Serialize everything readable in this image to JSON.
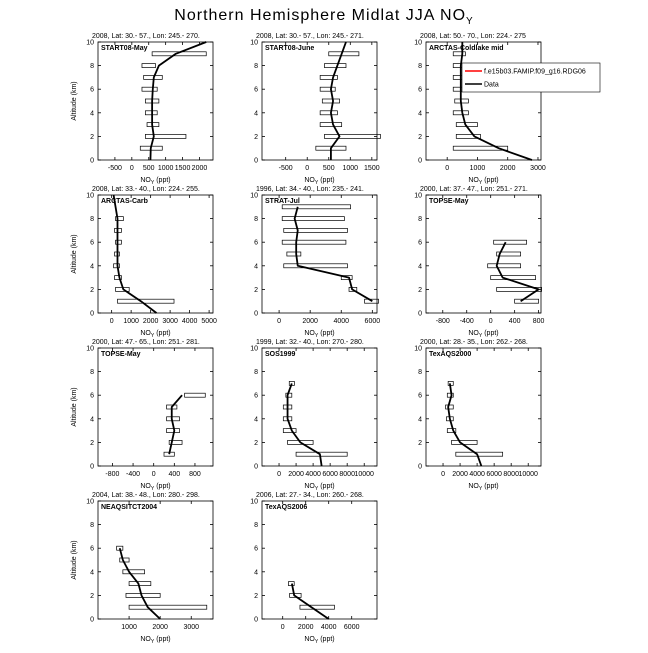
{
  "figure": {
    "title": "Northern Hemisphere Midlat JJA NO",
    "title_subscript": "Y"
  },
  "chart_data": [
    {
      "type": "line",
      "header": "2008, Lat:  30.- 57., Lon: 245.- 270.",
      "label": "START08-May",
      "x_label": "NO",
      "x_label_subscript": "Y",
      "x_label_unit": "(ppt)",
      "y_label": "Altitude (km)",
      "xlim": [
        -1000,
        2400
      ],
      "xticks": [
        -500,
        0,
        500,
        1000,
        1500,
        2000
      ],
      "ylim": [
        0,
        10
      ],
      "yticks": [
        0,
        2,
        4,
        6,
        8,
        10
      ],
      "model": {
        "color": "#000000",
        "altitude": [
          0,
          1,
          2,
          3,
          4,
          5,
          6,
          7,
          8,
          9,
          10
        ],
        "values": [
          550,
          560,
          650,
          600,
          600,
          600,
          620,
          650,
          800,
          1300,
          2200
        ]
      },
      "data": {
        "altitude": [
          1,
          2,
          3,
          4,
          5,
          6,
          7,
          8,
          9
        ],
        "low": [
          250,
          400,
          450,
          400,
          400,
          300,
          350,
          300,
          600
        ],
        "high": [
          900,
          1600,
          800,
          750,
          800,
          750,
          900,
          700,
          2200
        ]
      }
    },
    {
      "type": "line",
      "header": "2008, Lat:  30.- 57., Lon: 245.- 271.",
      "label": "START08-June",
      "x_label": "NO",
      "x_label_subscript": "Y",
      "x_label_unit": "(ppt)",
      "xlim": [
        -1050,
        1620
      ],
      "xticks": [
        -500,
        0,
        500,
        1000,
        1500
      ],
      "ylim": [
        0,
        10
      ],
      "yticks": [
        0,
        2,
        4,
        6,
        8,
        10
      ],
      "model": {
        "color": "#000000",
        "altitude": [
          0,
          1,
          2,
          3,
          4,
          5,
          6,
          7,
          8,
          9,
          10
        ],
        "values": [
          550,
          550,
          750,
          600,
          550,
          600,
          550,
          600,
          700,
          800,
          900
        ]
      },
      "data": {
        "altitude": [
          1,
          2,
          3,
          4,
          5,
          6,
          7,
          8,
          9
        ],
        "low": [
          200,
          400,
          300,
          300,
          350,
          300,
          300,
          400,
          500
        ],
        "high": [
          900,
          1700,
          800,
          700,
          750,
          650,
          700,
          900,
          1200
        ]
      }
    },
    {
      "type": "line",
      "header": "2008, Lat:  50.- 70., Lon: 224.- 275",
      "label": "ARCTAS-Coldlake mid",
      "x_label": "NO",
      "x_label_subscript": "Y",
      "x_label_unit": "(ppt)",
      "xlim": [
        -700,
        3100
      ],
      "xticks": [
        0,
        1000,
        2000,
        3000
      ],
      "ylim": [
        0,
        10
      ],
      "yticks": [
        0,
        2,
        4,
        6,
        8,
        10
      ],
      "model": {
        "color": "#000000",
        "altitude": [
          0,
          1,
          2,
          3,
          4,
          5,
          6,
          7,
          8,
          9,
          10
        ],
        "values": [
          2800,
          1700,
          900,
          600,
          500,
          450,
          450,
          450,
          450,
          500,
          500
        ]
      },
      "data": {
        "altitude": [
          1,
          2,
          3,
          4,
          5,
          6,
          7,
          8,
          9
        ],
        "low": [
          200,
          300,
          300,
          200,
          250,
          200,
          200,
          200,
          200
        ],
        "high": [
          2000,
          1100,
          1000,
          700,
          700,
          600,
          700,
          800,
          600
        ]
      },
      "legend": [
        {
          "name": "f.e15b03.FAMIP.f09_g16.RDG06",
          "color": "#ff0000"
        },
        {
          "name": "Data",
          "color": "#000000"
        }
      ]
    },
    {
      "type": "line",
      "header": "2008, Lat:  33.- 40., Lon: 224.- 255.",
      "label": "ARCTAS-Carb",
      "x_label": "NO",
      "x_label_subscript": "Y",
      "x_label_unit": "(ppt)",
      "y_label": "Altitude (km)",
      "xlim": [
        -700,
        5200
      ],
      "xticks": [
        0,
        1000,
        2000,
        3000,
        4000,
        5000
      ],
      "ylim": [
        0,
        10
      ],
      "yticks": [
        0,
        2,
        4,
        6,
        8,
        10
      ],
      "model": {
        "color": "#000000",
        "altitude": [
          0,
          1,
          2,
          3,
          4,
          5,
          6,
          7,
          8,
          9,
          10
        ],
        "values": [
          2300,
          1500,
          600,
          400,
          300,
          300,
          300,
          300,
          300,
          200,
          100
        ]
      },
      "data": {
        "altitude": [
          1,
          2,
          3,
          4,
          5,
          6,
          7,
          8
        ],
        "low": [
          300,
          200,
          150,
          100,
          150,
          200,
          150,
          200
        ],
        "high": [
          3200,
          900,
          500,
          400,
          400,
          500,
          500,
          600
        ]
      }
    },
    {
      "type": "line",
      "header": "1996, Lat:  34.- 40., Lon: 235.- 241.",
      "label": "STRAT-Jul",
      "x_label": "NO",
      "x_label_subscript": "Y",
      "x_label_unit": "(ppt)",
      "xlim": [
        -1100,
        6300
      ],
      "xticks": [
        0,
        2000,
        4000,
        6000
      ],
      "ylim": [
        0,
        10
      ],
      "yticks": [
        0,
        2,
        4,
        6,
        8,
        10
      ],
      "model": {
        "color": "#000000",
        "altitude": [
          1,
          2,
          3,
          4,
          5,
          6,
          7,
          8,
          9
        ],
        "values": [
          6000,
          4700,
          4500,
          1200,
          1100,
          1100,
          1200,
          1000,
          1200
        ]
      },
      "data": {
        "altitude": [
          1,
          2,
          3,
          4,
          5,
          6,
          7,
          8,
          9
        ],
        "low": [
          5500,
          4500,
          4000,
          300,
          500,
          200,
          300,
          200,
          200
        ],
        "high": [
          6400,
          5000,
          4700,
          4400,
          1400,
          4300,
          4400,
          4200,
          4600
        ]
      }
    },
    {
      "type": "line",
      "header": "2000, Lat:  37.- 47., Lon: 251.- 271.",
      "label": "TOPSE-May",
      "x_label": "NO",
      "x_label_subscript": "Y",
      "x_label_unit": "(ppt)",
      "xlim": [
        -1080,
        840
      ],
      "xticks": [
        -800,
        -400,
        0,
        400,
        800
      ],
      "ylim": [
        0,
        10
      ],
      "yticks": [
        0,
        2,
        4,
        6,
        8,
        10
      ],
      "model": {
        "color": "#000000",
        "altitude": [
          1,
          2,
          3,
          4,
          5,
          6
        ],
        "values": [
          500,
          800,
          200,
          100,
          150,
          250
        ]
      },
      "data": {
        "altitude": [
          1,
          2,
          3,
          4,
          5,
          6
        ],
        "low": [
          400,
          100,
          0,
          -50,
          100,
          50
        ],
        "high": [
          800,
          850,
          750,
          500,
          500,
          600
        ]
      }
    },
    {
      "type": "line",
      "header": "2000, Lat:  47.- 65., Lon: 251.- 281.",
      "label": "TOPSE-May",
      "x_label": "NO",
      "x_label_subscript": "Y",
      "x_label_unit": "(ppt)",
      "y_label": "Altitude (km)",
      "xlim": [
        -1080,
        1150
      ],
      "xticks": [
        -800,
        -400,
        0,
        400,
        800
      ],
      "ylim": [
        0,
        10
      ],
      "yticks": [
        0,
        2,
        4,
        6,
        8,
        10
      ],
      "model": {
        "color": "#000000",
        "altitude": [
          1,
          2,
          3,
          4,
          5,
          6
        ],
        "values": [
          300,
          350,
          400,
          350,
          350,
          550
        ]
      },
      "data": {
        "altitude": [
          1,
          2,
          3,
          4,
          5,
          6
        ],
        "low": [
          200,
          300,
          250,
          250,
          250,
          600
        ],
        "high": [
          400,
          550,
          500,
          500,
          450,
          1000
        ]
      }
    },
    {
      "type": "line",
      "header": "1999, Lat:  32.- 40., Lon: 270.- 280.",
      "label": "SOS1999",
      "x_label": "NO",
      "x_label_subscript": "Y",
      "x_label_unit": "(ppt)",
      "xlim": [
        -2000,
        11500
      ],
      "xticks": [
        0,
        2000,
        4000,
        6000,
        8000,
        10000
      ],
      "ylim": [
        0,
        10
      ],
      "yticks": [
        0,
        2,
        4,
        6,
        8,
        10
      ],
      "model": {
        "color": "#000000",
        "altitude": [
          0,
          1,
          2,
          3,
          4,
          5,
          6,
          7
        ],
        "values": [
          5000,
          4800,
          2500,
          1500,
          1000,
          1000,
          1000,
          1500
        ]
      },
      "data": {
        "altitude": [
          1,
          2,
          3,
          4,
          5,
          6,
          7
        ],
        "low": [
          2000,
          1000,
          500,
          500,
          500,
          800,
          1200
        ],
        "high": [
          8000,
          4000,
          2000,
          1500,
          1500,
          1500,
          1800
        ]
      }
    },
    {
      "type": "line",
      "header": "2000, Lat:  28.- 35., Lon: 262.- 268.",
      "label": "TexAQS2000",
      "x_label": "NO",
      "x_label_subscript": "Y",
      "x_label_unit": "(ppt)",
      "xlim": [
        -2000,
        11500
      ],
      "xticks": [
        0,
        2000,
        4000,
        6000,
        8000,
        10000
      ],
      "ylim": [
        0,
        10
      ],
      "yticks": [
        0,
        2,
        4,
        6,
        8,
        10
      ],
      "model": {
        "color": "#000000",
        "altitude": [
          0,
          1,
          2,
          3,
          4,
          5,
          6,
          7
        ],
        "values": [
          4500,
          4000,
          2000,
          1200,
          800,
          600,
          1000,
          800
        ]
      },
      "data": {
        "altitude": [
          1,
          2,
          3,
          4,
          5,
          6,
          7
        ],
        "low": [
          1500,
          1000,
          500,
          400,
          300,
          500,
          600
        ],
        "high": [
          7000,
          4000,
          1500,
          1200,
          1200,
          1200,
          1200
        ]
      }
    },
    {
      "type": "line",
      "header": "2004, Lat:  38.- 48., Lon: 280.- 298.",
      "label": "NEAQSITCT2004",
      "x_label": "NO",
      "x_label_subscript": "Y",
      "x_label_unit": "(ppt)",
      "y_label": "Altitude (km)",
      "xlim": [
        0,
        3700
      ],
      "xticks": [
        1000,
        2000,
        3000
      ],
      "ylim": [
        0,
        10
      ],
      "yticks": [
        0,
        2,
        4,
        6,
        8,
        10
      ],
      "model": {
        "color": "#000000",
        "altitude": [
          0,
          1,
          2,
          3,
          4,
          5,
          6
        ],
        "values": [
          2000,
          1600,
          1400,
          1300,
          1000,
          800,
          700
        ]
      },
      "data": {
        "altitude": [
          1,
          2,
          3,
          4,
          5,
          6
        ],
        "low": [
          1000,
          900,
          1000,
          800,
          700,
          600
        ],
        "high": [
          3500,
          2000,
          1700,
          1500,
          1000,
          800
        ]
      }
    },
    {
      "type": "line",
      "header": "2006, Lat:  27.- 34., Lon: 260.- 268.",
      "label": "TexAQS2006",
      "x_label": "NO",
      "x_label_subscript": "Y",
      "x_label_unit": "(ppt)",
      "xlim": [
        -1800,
        8200
      ],
      "xticks": [
        0,
        2000,
        4000,
        6000
      ],
      "ylim": [
        0,
        10
      ],
      "yticks": [
        0,
        2,
        4,
        6,
        8,
        10
      ],
      "model": {
        "color": "#000000",
        "altitude": [
          0,
          1,
          2,
          3
        ],
        "values": [
          4000,
          2500,
          1000,
          800
        ]
      },
      "data": {
        "altitude": [
          1,
          2,
          3
        ],
        "low": [
          1500,
          600,
          500
        ],
        "high": [
          4500,
          1600,
          1000
        ]
      }
    }
  ]
}
